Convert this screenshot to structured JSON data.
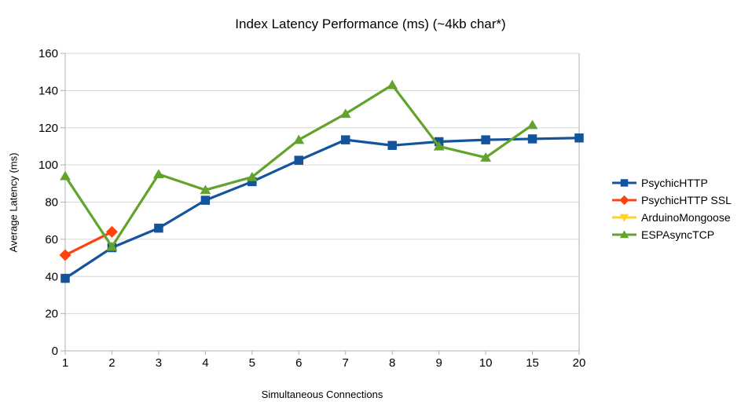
{
  "chart_data": {
    "type": "line",
    "title": "Index Latency Performance (ms) (~4kb char*)",
    "xlabel": "Simultaneous Connections",
    "ylabel": "Average Latency (ms)",
    "categories": [
      "1",
      "2",
      "3",
      "4",
      "5",
      "6",
      "7",
      "8",
      "9",
      "10",
      "15",
      "20"
    ],
    "ylim": [
      0,
      160
    ],
    "ytick_step": 20,
    "grid": "horizontal-only",
    "legend_position": "right",
    "background_color": "#ffffff",
    "grid_color": "#d6d6d6",
    "axis_color": "#b0b0b0",
    "series": [
      {
        "name": "PsychicHTTP",
        "color": "#14549C",
        "marker": "square",
        "values": [
          39,
          55.5,
          66,
          81,
          91,
          102.5,
          113.5,
          110.5,
          112.5,
          113.5,
          114,
          114.5
        ]
      },
      {
        "name": "PsychicHTTP SSL",
        "color": "#FF420E",
        "marker": "diamond",
        "values": [
          51.5,
          64,
          null,
          null,
          null,
          null,
          null,
          null,
          null,
          null,
          null,
          null
        ]
      },
      {
        "name": "ArduinoMongoose",
        "color": "#FFD320",
        "marker": "triangle-down",
        "values": [
          null,
          null,
          null,
          null,
          null,
          null,
          null,
          null,
          null,
          null,
          null,
          null
        ]
      },
      {
        "name": "ESPAsyncTCP",
        "color": "#61A32C",
        "marker": "triangle-up",
        "values": [
          94,
          56,
          95,
          86.5,
          93.5,
          113.5,
          127.5,
          143,
          110,
          104,
          121.5,
          null
        ]
      }
    ]
  }
}
